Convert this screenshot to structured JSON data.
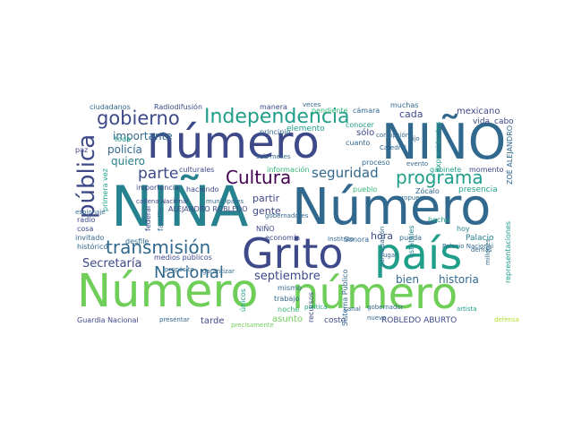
{
  "palette": {
    "dark_purple": "#440154",
    "purple": "#482878",
    "indigo": "#3e4989",
    "blue": "#31688e",
    "teal_blue": "#26828e",
    "teal": "#1f9e89",
    "green": "#35b779",
    "light_green": "#6ece58",
    "lime": "#b5de2b",
    "yellow": "#fde725"
  },
  "words": {
    "numero_upper_1": "Número",
    "nina_upper": "NIÑA",
    "numero_upper_2": "Número",
    "numero_lower_1": "número",
    "numero_lower_2": "número",
    "nino_upper": "NIÑO",
    "pais": "país",
    "grito": "Grito",
    "publica": "pública",
    "gobierno": "gobierno",
    "independencia": "Independencia",
    "cultura": "Cultura",
    "programa": "programa",
    "transmision": "transmisión",
    "nacional": "Nacional",
    "parte": "parte",
    "seguridad": "seguridad",
    "septiembre": "septiembre",
    "secretaria": "Secretaría",
    "historia": "historia",
    "bien": "bien",
    "importante": "importante",
    "quiero": "quiero",
    "policia": "policía",
    "gente": "gente",
    "partir": "partir",
    "hora": "hora",
    "cada": "cada",
    "solo": "sólo",
    "elemento": "elemento",
    "mexicano": "mexicano",
    "vida": "vida",
    "cabo": "cabo",
    "expresidentes": "expresidentes",
    "ciudadanos": "ciudadanos",
    "radiodifusion": "Radiodifusión",
    "manera": "manera",
    "pendiente": "pendiente",
    "camara": "cámara",
    "muchas": "muchas",
    "principio": "principio",
    "cuanto": "cuanto",
    "conocer": "conocer",
    "toda": "toda",
    "paz": "paz",
    "primera_vez": "primera vez",
    "importancia": "importancia",
    "culturales": "culturales",
    "informacion": "información",
    "proceso": "proceso",
    "gabinete": "gabinete",
    "momento": "momento",
    "presencia": "presencia",
    "pueblo": "pueblo",
    "zocalo": "Zócalo",
    "zoe_alejandro": "ZOÉ ALEJANDRO",
    "haciendo": "haciendo",
    "medios_publicos": "medios públicos",
    "alejandro_robledo": "ALEJANDRO ROBLEDO",
    "nino_small": "NIÑO",
    "economia": "economía",
    "sonora": "Sonora",
    "pueda": "pueda",
    "palacio": "Palacio",
    "hoy": "hoy",
    "hecho": "hecho",
    "estatales": "estatales",
    "representaciones": "representaciones",
    "invitado": "invitado",
    "desfile": "desfile",
    "historico": "histórico",
    "cosa": "cosa",
    "radio": "radio",
    "federal": "federal",
    "familia": "familia",
    "guardia_nacional": "Guardia Nacional",
    "tarde": "tarde",
    "asunto": "asunto",
    "costo": "costo",
    "robledo_aburto": "ROBLEDO ABURTO",
    "sistema_publico": "Sistema Público",
    "recursos": "recursos",
    "mismo": "mismo",
    "trabajo": "trabajo",
    "noche": "noche",
    "unicos": "únicos",
    "presentar": "presentar",
    "precisamente": "precisamente",
    "gobernador": "gobernador",
    "nuevo": "nuevo",
    "espionaje": "espionaje",
    "cadena_nacional": "cadena Nacional",
    "artista": "artista",
    "defensa": "defensa",
    "palacio_nacional": "Palacio Nacional",
    "gobernadores": "gobernadores",
    "instituto": "Instituto",
    "canal": "canal",
    "politica": "política",
    "corrupcion": "corrupción",
    "evento": "evento",
    "hijo": "hijo",
    "catedral": "Catedral",
    "veces": "veces",
    "seis_meses": "seis meses",
    "municipales": "municipales",
    "propuesta": "propuesta",
    "participacion": "participación",
    "millones": "millones",
    "demas": "demás",
    "jugar": "jugar",
    "garantizar": "garantizar",
    "proposito": "propósito"
  }
}
